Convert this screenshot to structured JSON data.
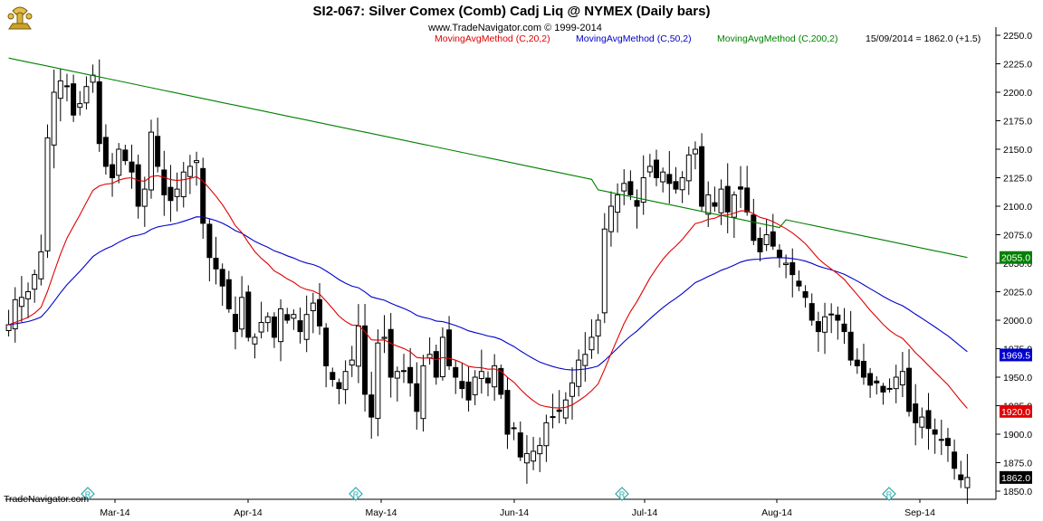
{
  "header": {
    "title": "SI2-067:  Silver Comex (Comb) Cadj Liq @ NYMEX  (Daily bars)",
    "copyright": "www.TradeNavigator.com © 1999-2014"
  },
  "footer": {
    "brand": "TradeNavigator.com"
  },
  "colors": {
    "ma20": "#e00000",
    "ma50": "#0000cc",
    "ma200": "#008000",
    "candle_down": "#000000",
    "candle_up_fill": "#ffffff",
    "last_tag": "#000000"
  },
  "icons": {
    "logo": "trade-navigator-trophy-icon",
    "event_marker": "roll-diamond-icon"
  },
  "chart_data": {
    "type": "candlestick",
    "title": "SI2-067:  Silver Comex (Comb) Cadj Liq @ NYMEX  (Daily bars)",
    "bar_period": "Daily bars",
    "y_axis": {
      "side": "right",
      "ylim": [
        1845,
        2255
      ],
      "ticks": [
        1850.0,
        1875.0,
        1900.0,
        1925.0,
        1950.0,
        1975.0,
        2000.0,
        2025.0,
        2050.0,
        2075.0,
        2100.0,
        2125.0,
        2150.0,
        2175.0,
        2200.0,
        2225.0,
        2250.0
      ]
    },
    "x_axis": {
      "tick_labels": [
        "Mar-14",
        "Apr-14",
        "May-14",
        "Jun-14",
        "Jul-14",
        "Aug-14",
        "Sep-14"
      ],
      "tick_bars": [
        14,
        35,
        56,
        77,
        98,
        119,
        140
      ]
    },
    "grid": false,
    "legend_position": "top",
    "legend": [
      {
        "label": "MovingAvgMethod (C,20,2)",
        "color": "#e00000",
        "last": 1920.0
      },
      {
        "label": "MovingAvgMethod (C,50,2)",
        "color": "#0000cc",
        "last": 1969.5
      },
      {
        "label": "MovingAvgMethod (C,200,2)",
        "color": "#008000",
        "last": 2055.0
      }
    ],
    "last_quote": {
      "label": "15/09/2014 = 1862.0 (+1.5)",
      "date": "15/09/2014",
      "close": 1862.0,
      "change": 1.5
    },
    "price_tags": [
      {
        "label": "2055.0",
        "value": 2055.0,
        "color": "#008000"
      },
      {
        "label": "1969.5",
        "value": 1969.5,
        "color": "#0000cc"
      },
      {
        "label": "1920.0",
        "value": 1920.0,
        "color": "#e00000"
      },
      {
        "label": "1862.0",
        "value": 1862.0,
        "color": "#000000"
      }
    ],
    "event_markers_at_bars": [
      13,
      55,
      97,
      139
    ],
    "close": [
      1996,
      2018,
      2020,
      2025,
      2040,
      2060,
      2160,
      2200,
      2210,
      2205,
      2180,
      2190,
      2205,
      2215,
      2155,
      2135,
      2125,
      2150,
      2140,
      2130,
      2100,
      2115,
      2165,
      2135,
      2110,
      2105,
      2115,
      2130,
      2135,
      2140,
      2085,
      2055,
      2045,
      2030,
      2010,
      1990,
      2020,
      1985,
      1985,
      1998,
      2003,
      1985,
      2010,
      2000,
      2005,
      1990,
      2005,
      2015,
      1995,
      1960,
      1948,
      1940,
      1955,
      1965,
      1995,
      1935,
      1915,
      1980,
      1985,
      1950,
      1955,
      1955,
      1945,
      1920,
      1960,
      1970,
      1950,
      1985,
      1960,
      1950,
      1940,
      1930,
      1950,
      1955,
      1945,
      1960,
      1935,
      1900,
      1905,
      1880,
      1883,
      1885,
      1890,
      1910,
      1915,
      1920,
      1930,
      1945,
      1965,
      1970,
      1985,
      2000,
      2080,
      2100,
      2110,
      2120,
      2110,
      2100,
      2125,
      2135,
      2125,
      2130,
      2120,
      2115,
      2125,
      2145,
      2150,
      2100,
      2110,
      2100,
      2115,
      2095,
      2110,
      2115,
      2095,
      2070,
      2060,
      2075,
      2065,
      2055,
      2050,
      2040,
      2030,
      2020,
      2000,
      1990,
      2003,
      2005,
      2000,
      1990,
      1965,
      1960,
      1950,
      1943,
      1945,
      1937,
      1940,
      1950,
      1955,
      1920,
      1910,
      1915,
      1905,
      1900,
      1895,
      1890,
      1870,
      1860,
      1862
    ]
  }
}
